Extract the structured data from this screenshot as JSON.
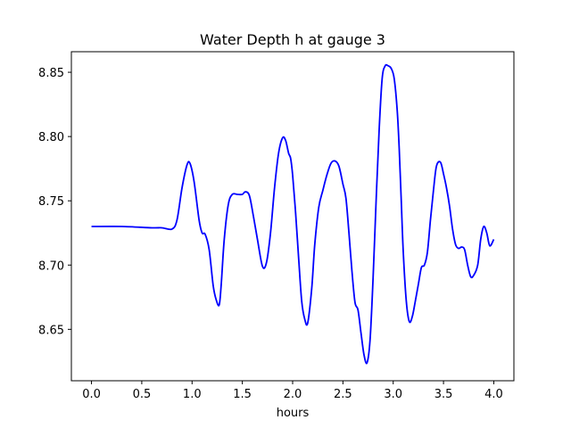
{
  "chart_data": {
    "type": "line",
    "title": "Water Depth h at gauge 3",
    "xlabel": "hours",
    "ylabel": "",
    "xlim": [
      -0.2,
      4.2
    ],
    "ylim": [
      8.61,
      8.866
    ],
    "xticks": [
      0.0,
      0.5,
      1.0,
      1.5,
      2.0,
      2.5,
      3.0,
      3.5,
      4.0
    ],
    "xtick_labels": [
      "0.0",
      "0.5",
      "1.0",
      "1.5",
      "2.0",
      "2.5",
      "3.0",
      "3.5",
      "4.0"
    ],
    "yticks": [
      8.65,
      8.7,
      8.75,
      8.8,
      8.85
    ],
    "ytick_labels": [
      "8.65",
      "8.70",
      "8.75",
      "8.80",
      "8.85"
    ],
    "grid": false,
    "legend": "none",
    "colors": {
      "series": "#0000ff",
      "axes": "#000000",
      "background": "#ffffff"
    },
    "series": [
      {
        "x": [
          0.0,
          0.3,
          0.6,
          0.7,
          0.8,
          0.85,
          0.9,
          0.95,
          0.98,
          1.02,
          1.07,
          1.1,
          1.13,
          1.17,
          1.21,
          1.24,
          1.27,
          1.29,
          1.32,
          1.36,
          1.4,
          1.45,
          1.5,
          1.53,
          1.57,
          1.61,
          1.65,
          1.7,
          1.74,
          1.78,
          1.82,
          1.86,
          1.9,
          1.93,
          1.96,
          1.98,
          2.0,
          2.03,
          2.06,
          2.09,
          2.12,
          2.15,
          2.19,
          2.22,
          2.26,
          2.3,
          2.34,
          2.38,
          2.42,
          2.46,
          2.5,
          2.53,
          2.56,
          2.59,
          2.62,
          2.65,
          2.68,
          2.71,
          2.74,
          2.77,
          2.8,
          2.83,
          2.86,
          2.89,
          2.92,
          2.95,
          2.98,
          3.01,
          3.04,
          3.06,
          3.08,
          3.1,
          3.13,
          3.16,
          3.19,
          3.22,
          3.25,
          3.28,
          3.31,
          3.34,
          3.37,
          3.4,
          3.43,
          3.47,
          3.5,
          3.53,
          3.56,
          3.59,
          3.62,
          3.65,
          3.68,
          3.71,
          3.74,
          3.77,
          3.8,
          3.84,
          3.87,
          3.9,
          3.93,
          3.96,
          4.0
        ],
        "y": [
          8.73,
          8.73,
          8.729,
          8.729,
          8.728,
          8.735,
          8.76,
          8.778,
          8.779,
          8.765,
          8.735,
          8.725,
          8.724,
          8.712,
          8.684,
          8.673,
          8.669,
          8.685,
          8.72,
          8.747,
          8.755,
          8.755,
          8.755,
          8.757,
          8.754,
          8.738,
          8.72,
          8.699,
          8.702,
          8.725,
          8.76,
          8.787,
          8.799,
          8.797,
          8.787,
          8.783,
          8.77,
          8.74,
          8.705,
          8.672,
          8.658,
          8.655,
          8.682,
          8.716,
          8.745,
          8.758,
          8.77,
          8.779,
          8.781,
          8.777,
          8.763,
          8.752,
          8.725,
          8.695,
          8.671,
          8.665,
          8.647,
          8.63,
          8.624,
          8.642,
          8.69,
          8.75,
          8.805,
          8.845,
          8.855,
          8.855,
          8.853,
          8.845,
          8.82,
          8.79,
          8.75,
          8.71,
          8.672,
          8.656,
          8.66,
          8.672,
          8.685,
          8.698,
          8.7,
          8.71,
          8.735,
          8.758,
          8.777,
          8.78,
          8.771,
          8.76,
          8.746,
          8.728,
          8.716,
          8.713,
          8.714,
          8.712,
          8.7,
          8.691,
          8.692,
          8.7,
          8.72,
          8.73,
          8.725,
          8.715,
          8.72
        ]
      }
    ]
  }
}
